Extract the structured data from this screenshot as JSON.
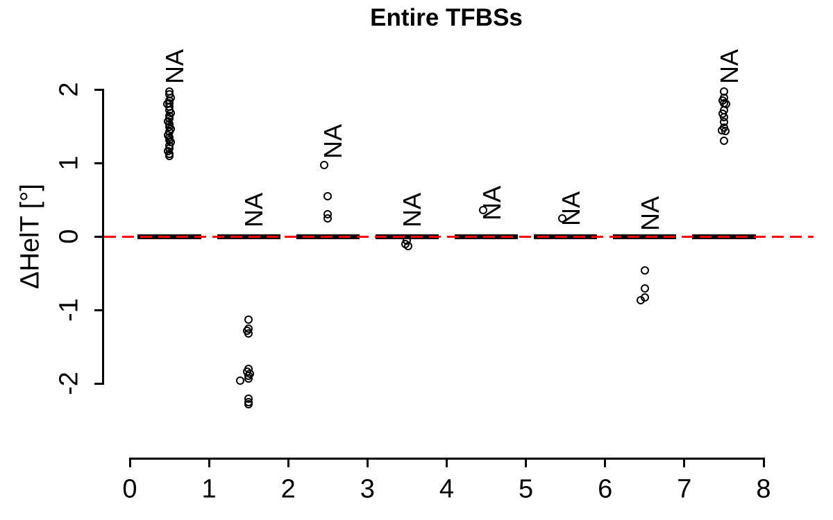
{
  "chart_data": {
    "type": "scatter",
    "title": "Entire TFBSs",
    "xlabel": "",
    "ylabel": "ΔHelT [°]",
    "xlim": [
      0,
      8
    ],
    "ylim": [
      -2.5,
      2.5
    ],
    "x_ticks": [
      0,
      1,
      2,
      3,
      4,
      5,
      6,
      7,
      8
    ],
    "y_ticks": [
      -2,
      -1,
      0,
      1,
      2
    ],
    "grid": "off",
    "reference_line": {
      "y": 0,
      "style": "dashed",
      "color": "#FF0000"
    },
    "boxplot": {
      "median_value": 0,
      "box_width": 0.8,
      "color": "#000000"
    },
    "point_color": "#000000",
    "na_label_text": "NA",
    "groups": [
      {
        "x": 0.5,
        "median": 0,
        "na_label": "NA",
        "na_y": 2.08,
        "outliers": [
          [
            1.97,
            0
          ],
          [
            1.93,
            0
          ],
          [
            1.89,
            0.02
          ],
          [
            1.85,
            0
          ],
          [
            1.81,
            0
          ],
          [
            1.8,
            -0.03
          ],
          [
            1.76,
            0
          ],
          [
            1.72,
            0
          ],
          [
            1.68,
            0.02
          ],
          [
            1.64,
            0
          ],
          [
            1.6,
            0
          ],
          [
            1.57,
            -0.02
          ],
          [
            1.53,
            0
          ],
          [
            1.49,
            0
          ],
          [
            1.46,
            0.02
          ],
          [
            1.42,
            0
          ],
          [
            1.38,
            -0.02
          ],
          [
            1.35,
            0
          ],
          [
            1.31,
            0
          ],
          [
            1.28,
            0.02
          ],
          [
            1.24,
            0
          ],
          [
            1.2,
            0
          ],
          [
            1.16,
            -0.02
          ],
          [
            1.12,
            0
          ],
          [
            1.09,
            0
          ]
        ]
      },
      {
        "x": 1.5,
        "median": 0,
        "na_label": "NA",
        "na_y": 0.12,
        "outliers": [
          [
            -1.13,
            0
          ],
          [
            -1.25,
            0
          ],
          [
            -1.28,
            -0.02
          ],
          [
            -1.32,
            0
          ],
          [
            -1.8,
            0
          ],
          [
            -1.84,
            -0.02
          ],
          [
            -1.87,
            0.02
          ],
          [
            -1.9,
            0
          ],
          [
            -1.93,
            0
          ],
          [
            -1.96,
            -0.11
          ],
          [
            -2.21,
            0
          ],
          [
            -2.25,
            0
          ],
          [
            -2.28,
            0
          ]
        ]
      },
      {
        "x": 2.5,
        "median": 0,
        "na_label": "NA",
        "na_y": 1.06,
        "outliers": [
          [
            0.97,
            -0.05
          ],
          [
            0.55,
            0
          ],
          [
            0.3,
            0
          ],
          [
            0.25,
            0
          ]
        ]
      },
      {
        "x": 3.5,
        "median": 0,
        "na_label": "NA",
        "na_y": 0.12,
        "outliers": [
          [
            -0.06,
            0
          ],
          [
            -0.1,
            -0.02
          ],
          [
            -0.13,
            0.01
          ]
        ]
      },
      {
        "x": 4.5,
        "median": 0,
        "na_label": "NA",
        "na_y": 0.22,
        "outliers": [
          [
            0.36,
            -0.04
          ]
        ]
      },
      {
        "x": 5.5,
        "median": 0,
        "na_label": "NA",
        "na_y": 0.14,
        "outliers": [
          [
            0.25,
            -0.04
          ]
        ]
      },
      {
        "x": 6.5,
        "median": 0,
        "na_label": "NA",
        "na_y": 0.08,
        "outliers": [
          [
            -0.46,
            0
          ],
          [
            -0.71,
            0
          ],
          [
            -0.83,
            0
          ],
          [
            -0.87,
            -0.05
          ]
        ]
      },
      {
        "x": 7.5,
        "median": 0,
        "na_label": "NA",
        "na_y": 2.08,
        "outliers": [
          [
            1.97,
            0
          ],
          [
            1.89,
            0
          ],
          [
            1.85,
            -0.02
          ],
          [
            1.81,
            0
          ],
          [
            1.8,
            0.03
          ],
          [
            1.72,
            0
          ],
          [
            1.67,
            -0.02
          ],
          [
            1.62,
            0
          ],
          [
            1.56,
            0
          ],
          [
            1.48,
            0
          ],
          [
            1.44,
            -0.03
          ],
          [
            1.43,
            0.02
          ],
          [
            1.3,
            0
          ]
        ]
      }
    ]
  }
}
